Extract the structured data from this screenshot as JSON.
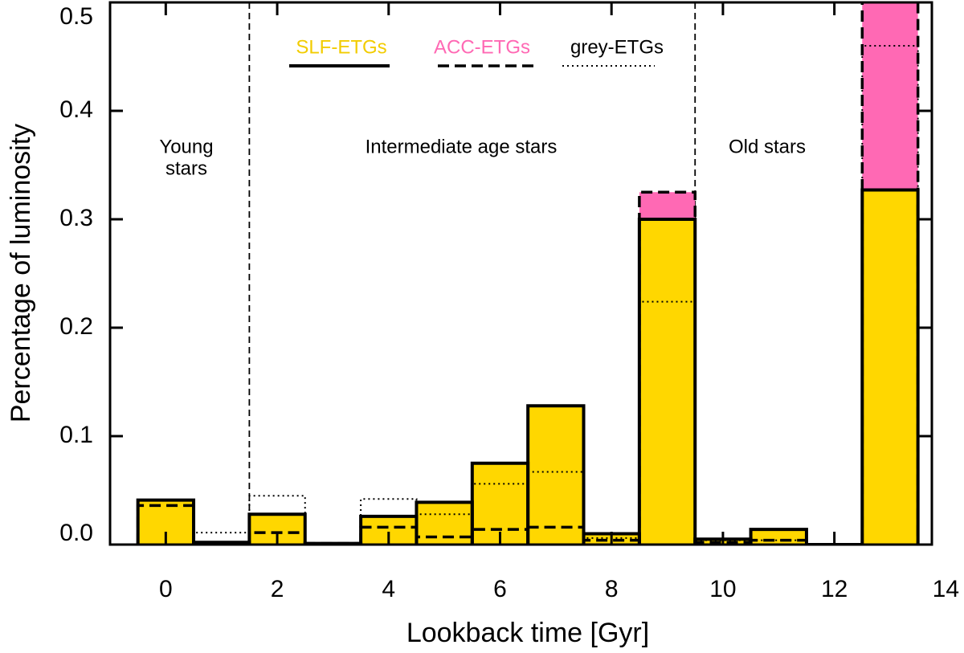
{
  "chart_data": {
    "type": "histogram",
    "xlabel": "Lookback time [Gyr]",
    "ylabel": "Percentage of luminosity",
    "bins": [
      -0.5,
      0.5,
      1.5,
      2.5,
      3.5,
      4.5,
      5.5,
      6.5,
      7.5,
      8.5,
      9.5,
      10.5,
      11.5,
      12.5,
      13.5
    ],
    "series": [
      {
        "name": "SLF-ETGs",
        "color": "#f2cc00",
        "fill": "#ffd700",
        "linestyle": "solid",
        "values": [
          0.041,
          0.002,
          0.028,
          0.001,
          0.026,
          0.039,
          0.075,
          0.128,
          0.01,
          0.3,
          0.005,
          0.014,
          0,
          0.327
        ]
      },
      {
        "name": "ACC-ETGs",
        "color": "#ff69b4",
        "fill": "#ff69b4",
        "linestyle": "dashed",
        "values": [
          0.036,
          0.001,
          0.011,
          0.001,
          0.016,
          0.007,
          0.014,
          0.016,
          0.004,
          0.325,
          0.002,
          0.004,
          0,
          0.52
        ]
      },
      {
        "name": "grey-ETGs",
        "color": "#000000",
        "fill": "none",
        "linestyle": "dotted",
        "values": [
          0.041,
          0.011,
          0.045,
          0.001,
          0.042,
          0.028,
          0.056,
          0.067,
          0.006,
          0.224,
          0.004,
          0.004,
          0,
          0.46
        ]
      }
    ],
    "dividers": [
      1.5,
      9.5
    ],
    "annotations": [
      {
        "lines": [
          "Young",
          "stars"
        ]
      },
      {
        "lines": [
          "Intermediate age stars"
        ]
      },
      {
        "lines": [
          "Old stars"
        ]
      }
    ],
    "xlim": [
      -1,
      13.75
    ],
    "ylim": [
      0,
      0.5
    ],
    "xticks": [
      0,
      2,
      4,
      6,
      8,
      10,
      12,
      14
    ],
    "yticks": [
      {
        "value": 0,
        "label": "0.0"
      },
      0.1,
      0.2,
      0.3,
      0.4,
      0.5
    ]
  }
}
